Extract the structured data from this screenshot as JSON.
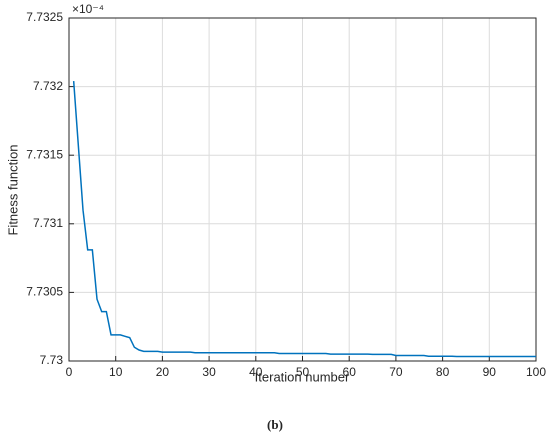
{
  "chart_data": {
    "type": "line",
    "x_label": "Iteration number",
    "y_label": "Fitness function",
    "y_scale_label": "×10⁻⁴",
    "caption": "(b)",
    "color": "#0072bd",
    "grid": true,
    "xlim": [
      0,
      100
    ],
    "xticks": [
      0,
      10,
      20,
      30,
      40,
      50,
      60,
      70,
      80,
      90,
      100
    ],
    "ylim": [
      7.73,
      7.7325
    ],
    "yticks": [
      7.73,
      7.7305,
      7.731,
      7.7315,
      7.732,
      7.7325
    ],
    "x": [
      1,
      2,
      3,
      4,
      5,
      6,
      7,
      8,
      9,
      10,
      11,
      12,
      13,
      14,
      15,
      16,
      17,
      18,
      19,
      20,
      21,
      22,
      23,
      24,
      25,
      26,
      27,
      28,
      29,
      30,
      31,
      32,
      33,
      34,
      35,
      36,
      37,
      38,
      39,
      40,
      41,
      42,
      43,
      44,
      45,
      46,
      47,
      48,
      49,
      50,
      51,
      52,
      53,
      54,
      55,
      56,
      57,
      58,
      59,
      60,
      61,
      62,
      63,
      64,
      65,
      66,
      67,
      68,
      69,
      70,
      71,
      72,
      73,
      74,
      75,
      76,
      77,
      78,
      79,
      80,
      81,
      82,
      83,
      84,
      85,
      86,
      87,
      88,
      89,
      90,
      91,
      92,
      93,
      94,
      95,
      96,
      97,
      98,
      99,
      100
    ],
    "values": [
      7.73204,
      7.73157,
      7.7311,
      7.73081,
      7.73081,
      7.73045,
      7.73036,
      7.73036,
      7.73019,
      7.73019,
      7.73019,
      7.73018,
      7.73017,
      7.7301,
      7.73008,
      7.73007,
      7.73007,
      7.73007,
      7.73007,
      7.730065,
      7.730065,
      7.730065,
      7.730065,
      7.730065,
      7.730065,
      7.730065,
      7.73006,
      7.73006,
      7.73006,
      7.73006,
      7.73006,
      7.73006,
      7.73006,
      7.73006,
      7.73006,
      7.73006,
      7.73006,
      7.73006,
      7.73006,
      7.73006,
      7.73006,
      7.73006,
      7.73006,
      7.73006,
      7.730055,
      7.730055,
      7.730055,
      7.730055,
      7.730055,
      7.730055,
      7.730055,
      7.730055,
      7.730055,
      7.730055,
      7.730055,
      7.73005,
      7.73005,
      7.73005,
      7.73005,
      7.73005,
      7.73005,
      7.73005,
      7.73005,
      7.73005,
      7.730048,
      7.730048,
      7.730048,
      7.730048,
      7.730048,
      7.73004,
      7.73004,
      7.73004,
      7.73004,
      7.73004,
      7.73004,
      7.73004,
      7.730035,
      7.730035,
      7.730035,
      7.730035,
      7.730035,
      7.730035,
      7.730033,
      7.730033,
      7.730033,
      7.730033,
      7.730033,
      7.730033,
      7.730033,
      7.730033,
      7.730033,
      7.730033,
      7.730033,
      7.730033,
      7.730033,
      7.730033,
      7.730033,
      7.730033,
      7.730033,
      7.730033
    ]
  }
}
